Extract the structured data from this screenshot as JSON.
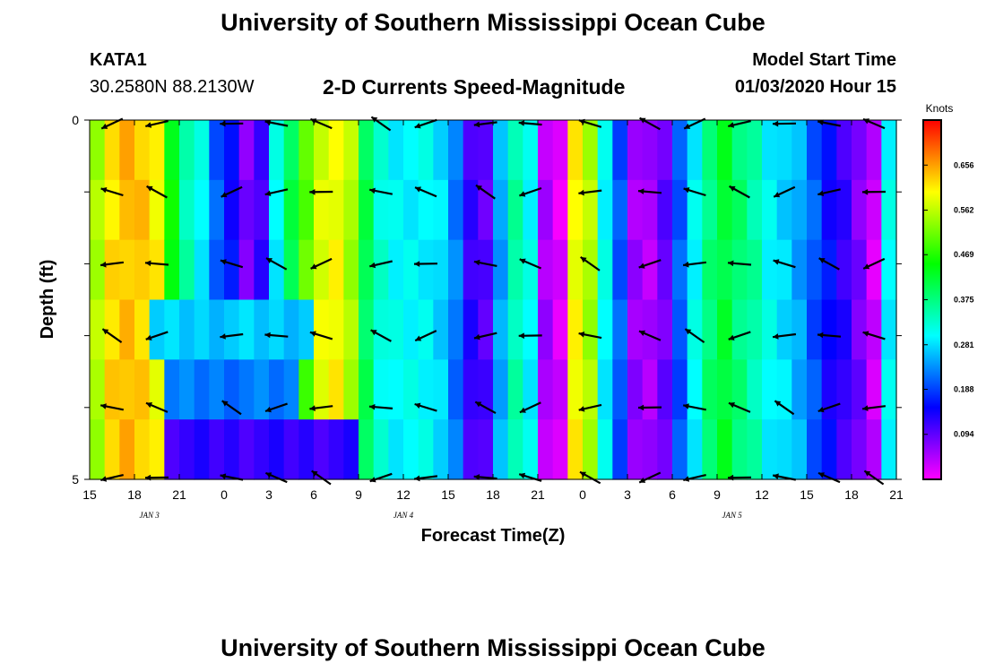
{
  "header": {
    "title": "University of Southern Mississippi Ocean Cube",
    "station": "KATA1",
    "coords": "30.2580N 88.2130W",
    "subtitle": "2-D Currents Speed-Magnitude",
    "model_start_label": "Model Start Time",
    "model_start_value": "01/03/2020 Hour 15"
  },
  "footer": {
    "title": "University of Southern Mississippi Ocean Cube"
  },
  "chart_data": {
    "type": "heatmap",
    "title": "2-D Currents Speed-Magnitude",
    "xlabel": "Forecast Time(Z)",
    "ylabel": "Depth (ft)",
    "x_ticks": [
      "15",
      "18",
      "21",
      "0",
      "3",
      "6",
      "9",
      "12",
      "15",
      "18",
      "21",
      "0",
      "3",
      "6",
      "9",
      "12",
      "15",
      "18",
      "21"
    ],
    "date_labels": [
      {
        "text": "JAN 3",
        "hour_index": 4
      },
      {
        "text": "JAN 4",
        "hour_index": 21
      },
      {
        "text": "JAN 5",
        "hour_index": 43
      }
    ],
    "y_ticks": [
      "0",
      "5"
    ],
    "ylim": [
      0,
      5
    ],
    "hours_range": [
      0,
      54
    ],
    "colorbar": {
      "unit": "Knots",
      "ticks": [
        "0.656",
        "0.562",
        "0.469",
        "0.375",
        "0.281",
        "0.188",
        "0.094"
      ],
      "tick_values": [
        0.656,
        0.562,
        0.469,
        0.375,
        0.281,
        0.188,
        0.094
      ],
      "range": [
        0.0,
        0.75
      ]
    },
    "speed_profile_knots": [
      0.55,
      0.62,
      0.64,
      0.63,
      0.6,
      0.45,
      0.35,
      0.3,
      0.2,
      0.15,
      0.08,
      0.12,
      0.3,
      0.4,
      0.5,
      0.58,
      0.6,
      0.55,
      0.4,
      0.32,
      0.3,
      0.3,
      0.3,
      0.28,
      0.22,
      0.12,
      0.1,
      0.25,
      0.35,
      0.3,
      0.05,
      0.02,
      0.6,
      0.55,
      0.3,
      0.2,
      0.06,
      0.05,
      0.09,
      0.2,
      0.3,
      0.38,
      0.42,
      0.38,
      0.35,
      0.3,
      0.28,
      0.25,
      0.2,
      0.15,
      0.12,
      0.08,
      0.03,
      0.3
    ],
    "depth_adjust_knots": [
      {
        "layer": 3,
        "from_hour": 4,
        "to_hour": 15,
        "value": 0.27
      },
      {
        "layer": 4,
        "from_hour": 5,
        "to_hour": 14,
        "value": 0.22
      },
      {
        "layer": 5,
        "from_hour": 5,
        "to_hour": 18,
        "value": 0.12
      }
    ],
    "vector_hours": [
      1.5,
      4.5,
      9.5,
      12.5,
      15.5,
      19.5,
      22.5,
      26.5,
      29.5,
      33.5,
      37.5,
      40.5,
      43.5,
      46.5,
      49.5,
      52.5
    ],
    "vector_depths_ft": [
      0.0,
      1.0,
      2.0,
      3.0,
      4.0,
      5.0
    ]
  }
}
